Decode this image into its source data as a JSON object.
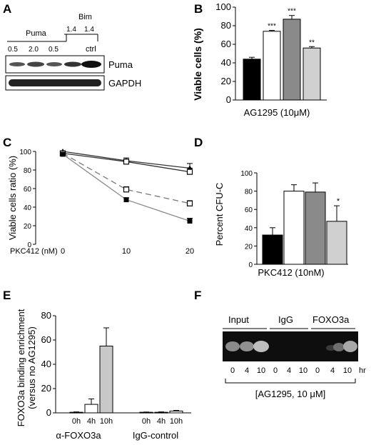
{
  "panels": {
    "A": {
      "label": "A",
      "header_left": "Puma",
      "header_right": "Bim",
      "bim_doses": [
        "1.4",
        "1.4"
      ],
      "puma_doses": [
        "0.5",
        "2.0",
        "0.5"
      ],
      "ctrl": "ctrl",
      "row_labels": [
        "Puma",
        "GAPDH"
      ]
    },
    "B": {
      "label": "B"
    },
    "C": {
      "label": "C"
    },
    "D": {
      "label": "D"
    },
    "E": {
      "label": "E"
    },
    "F": {
      "label": "F",
      "groups": [
        "Input",
        "IgG",
        "FOXO3a"
      ],
      "lanes": [
        "0",
        "4",
        "10",
        "0",
        "4",
        "10",
        "0",
        "4",
        "10"
      ],
      "unit": "hr",
      "treatment": "[AG1295, 10 μM]"
    }
  },
  "chart_data": [
    {
      "panel": "B",
      "type": "bar",
      "ylabel": "Viable cells (%)",
      "xlabel": "AG1295 (10μM)",
      "ylim": [
        0,
        100
      ],
      "yticks": [
        0,
        20,
        40,
        60,
        80,
        100
      ],
      "values": [
        44,
        74,
        87,
        56
      ],
      "errors": [
        2,
        1,
        4,
        1.5
      ],
      "annotations": [
        "",
        "***",
        "***",
        "**"
      ],
      "colors": [
        "#000000",
        "#ffffff",
        "#8a8a8a",
        "#d0d0d0"
      ]
    },
    {
      "panel": "C",
      "type": "line",
      "ylabel": "Viable cells ratio (%)",
      "xlabel": "PKC412 (nM)",
      "x": [
        0,
        10,
        20
      ],
      "ylim": [
        0,
        100
      ],
      "yticks": [
        0,
        20,
        40,
        60,
        80,
        100
      ],
      "series": [
        {
          "values": [
            100,
            90,
            82
          ],
          "errors": [
            3,
            3,
            5
          ],
          "marker": "filled-triangle",
          "dash": false
        },
        {
          "values": [
            98,
            89,
            78
          ],
          "errors": [
            3,
            2,
            4
          ],
          "marker": "open-square",
          "dash": false
        },
        {
          "values": [
            98,
            59,
            44
          ],
          "errors": [
            2,
            3,
            3
          ],
          "marker": "open-square",
          "dash": true
        },
        {
          "values": [
            97,
            48,
            25
          ],
          "errors": [
            2,
            2,
            3
          ],
          "marker": "filled-square",
          "dash": false
        }
      ]
    },
    {
      "panel": "D",
      "type": "bar",
      "ylabel": "Percent CFU-C",
      "xlabel": "PKC412 (10nM)",
      "ylim": [
        0,
        100
      ],
      "yticks": [
        0,
        20,
        40,
        60,
        80,
        100
      ],
      "values": [
        32,
        80,
        79,
        47
      ],
      "errors": [
        8,
        7,
        10,
        17
      ],
      "annotations": [
        "",
        "",
        "",
        "*"
      ],
      "colors": [
        "#000000",
        "#ffffff",
        "#8a8a8a",
        "#d0d0d0"
      ]
    },
    {
      "panel": "E",
      "type": "bar",
      "ylabel": "FOXO3a binding enrichment",
      "ylabel2": "(versus no AG1295)",
      "ylim": [
        0,
        80
      ],
      "yticks": [
        0,
        20,
        40,
        60,
        80
      ],
      "categories": [
        "0h",
        "4h",
        "10h",
        "0h",
        "4h",
        "10h"
      ],
      "groups": [
        "α-FOXO3a",
        "IgG-control"
      ],
      "values": [
        0.5,
        7,
        55,
        0.5,
        0.5,
        1.5
      ],
      "errors": [
        0.3,
        4.5,
        15,
        0.2,
        0.3,
        0.5
      ],
      "colors": [
        "#ffffff",
        "#ffffff",
        "#c8c8c8",
        "#ffffff",
        "#ffffff",
        "#ffffff"
      ]
    }
  ]
}
